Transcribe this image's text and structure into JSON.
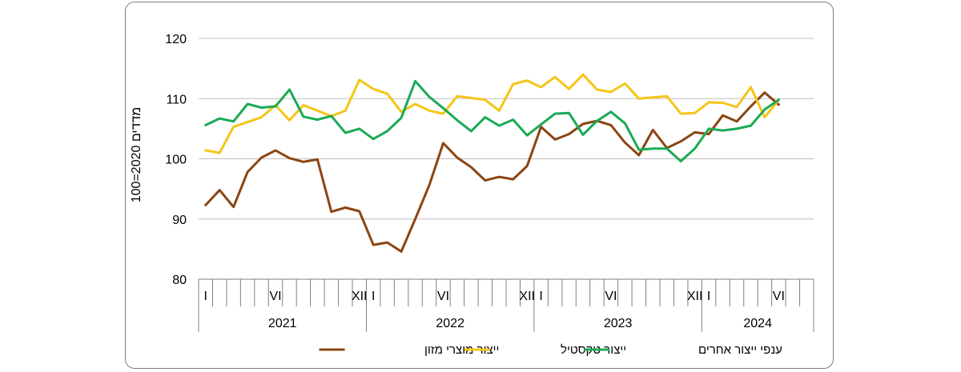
{
  "chart_data": {
    "type": "line",
    "ylabel": "מדדים 2020=100",
    "ylim": [
      80,
      120
    ],
    "yticks": [
      80,
      90,
      100,
      110,
      120
    ],
    "grid": true,
    "legend_position": "bottom",
    "years": [
      "2021",
      "2022",
      "2023",
      "2024"
    ],
    "month_markers": [
      {
        "index": 0,
        "label": "I"
      },
      {
        "index": 5,
        "label": "VI"
      },
      {
        "index": 11,
        "label": "XII"
      },
      {
        "index": 12,
        "label": "I"
      },
      {
        "index": 17,
        "label": "VI"
      },
      {
        "index": 23,
        "label": "XII"
      },
      {
        "index": 24,
        "label": "I"
      },
      {
        "index": 29,
        "label": "VI"
      },
      {
        "index": 35,
        "label": "XII"
      },
      {
        "index": 36,
        "label": "I"
      },
      {
        "index": 41,
        "label": "VI"
      }
    ],
    "series": [
      {
        "name": "ייצור מוצרי מזון",
        "color": "#8B4513",
        "values": [
          92.3,
          94.8,
          92.0,
          97.8,
          100.2,
          101.4,
          100.1,
          99.5,
          99.9,
          91.2,
          91.9,
          91.3,
          85.7,
          86.1,
          84.6,
          90.0,
          95.6,
          102.6,
          100.2,
          98.6,
          96.4,
          97.0,
          96.6,
          98.8,
          105.3,
          103.2,
          104.1,
          105.8,
          106.3,
          105.6,
          102.7,
          100.6,
          104.8,
          101.8,
          102.9,
          104.4,
          104.1,
          107.2,
          106.2,
          108.7,
          111.0,
          109.0
        ]
      },
      {
        "name": "ייצור טקסטיל",
        "color": "#F5C518",
        "values": [
          101.4,
          101.0,
          105.3,
          106.1,
          106.9,
          108.9,
          106.4,
          108.9,
          108.0,
          107.1,
          108.0,
          113.1,
          111.6,
          110.8,
          107.8,
          109.1,
          108.0,
          107.5,
          110.4,
          110.1,
          109.8,
          108.0,
          112.4,
          113.0,
          111.9,
          113.6,
          111.6,
          114.0,
          111.5,
          111.1,
          112.5,
          110.0,
          110.2,
          110.4,
          107.5,
          107.6,
          109.4,
          109.3,
          108.6,
          111.9,
          106.9,
          109.8
        ]
      },
      {
        "name": "ענפי ייצור אחרים",
        "color": "#1AAA55",
        "values": [
          105.6,
          106.7,
          106.2,
          109.1,
          108.5,
          108.7,
          111.5,
          107.0,
          106.5,
          107.1,
          104.3,
          105.0,
          103.3,
          104.6,
          106.8,
          112.9,
          110.3,
          108.4,
          106.4,
          104.6,
          106.9,
          105.5,
          106.5,
          103.9,
          105.7,
          107.5,
          107.6,
          104.0,
          106.3,
          107.8,
          105.9,
          101.5,
          101.7,
          101.7,
          99.6,
          101.7,
          105.0,
          104.7,
          105.0,
          105.5,
          108.2,
          109.8
        ]
      }
    ]
  }
}
